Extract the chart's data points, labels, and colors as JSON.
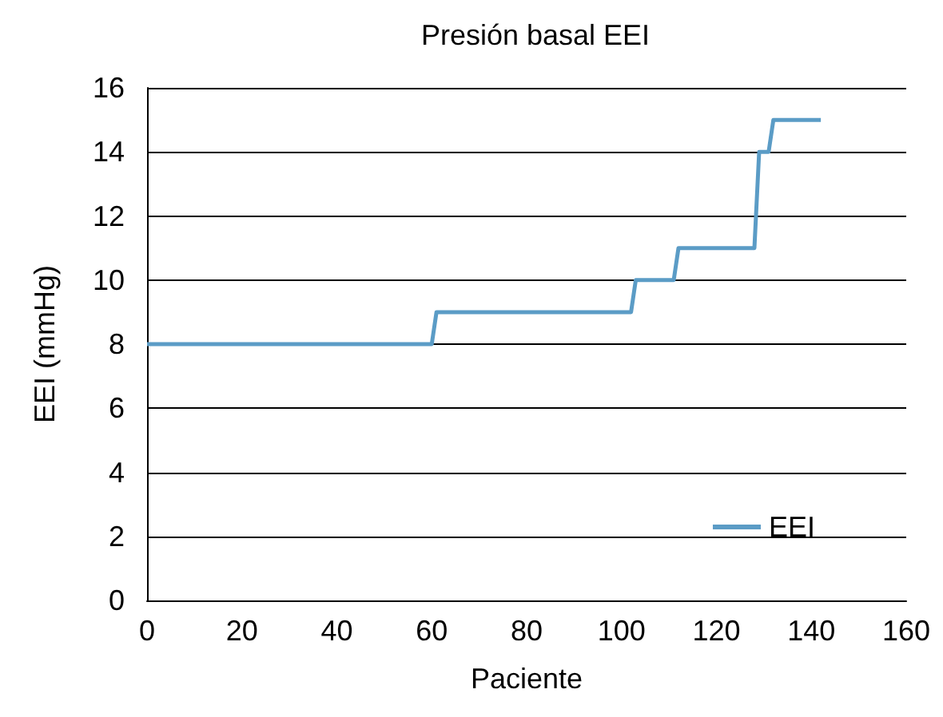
{
  "chart_data": {
    "type": "line",
    "title": "Presión basal EEI",
    "xlabel": "Paciente",
    "ylabel": "EEI (mmHg)",
    "x": [
      0,
      60,
      61,
      102,
      103,
      111,
      112,
      128,
      129,
      131,
      132,
      142
    ],
    "series": [
      {
        "name": "EEI",
        "color": "#5b9cc6",
        "values": [
          8,
          8,
          9,
          9,
          10,
          10,
          11,
          11,
          14,
          14,
          15,
          15
        ]
      }
    ],
    "xlim": [
      0,
      160
    ],
    "xticks": [
      0,
      20,
      40,
      60,
      80,
      100,
      120,
      140,
      160
    ],
    "ylim": [
      0,
      16
    ],
    "yticks": [
      0,
      2,
      4,
      6,
      8,
      10,
      12,
      14,
      16
    ],
    "grid": "y",
    "legend": "bottom right",
    "marker": "none",
    "line_style": "solid"
  }
}
